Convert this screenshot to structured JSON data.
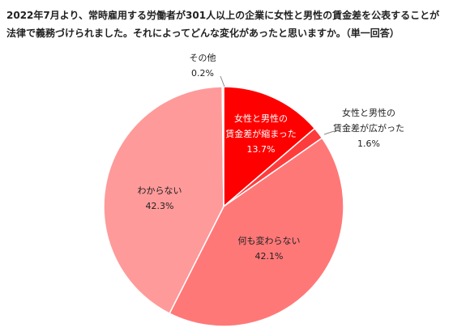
{
  "chart_data": {
    "type": "pie",
    "title": "2022年7月より、常時雇用する労働者が301人以上の企業に女性と男性の賃金差を公表することが\n法律で義務づけられました。それによってどんな変化があったと思いますか。（単一回答）",
    "categories": [
      "女性と男性の\n賃金差が縮まった",
      "女性と男性の\n賃金差が広がった",
      "何も変わらない",
      "わからない",
      "その他"
    ],
    "values": [
      13.7,
      1.6,
      42.1,
      42.3,
      0.2
    ],
    "value_labels": [
      "13.7%",
      "1.6%",
      "42.1%",
      "42.3%",
      "0.2%"
    ],
    "colors": [
      "#ff0000",
      "#ff3c3c",
      "#ff7878",
      "#ff9a9a",
      "#ffc8c8"
    ]
  }
}
